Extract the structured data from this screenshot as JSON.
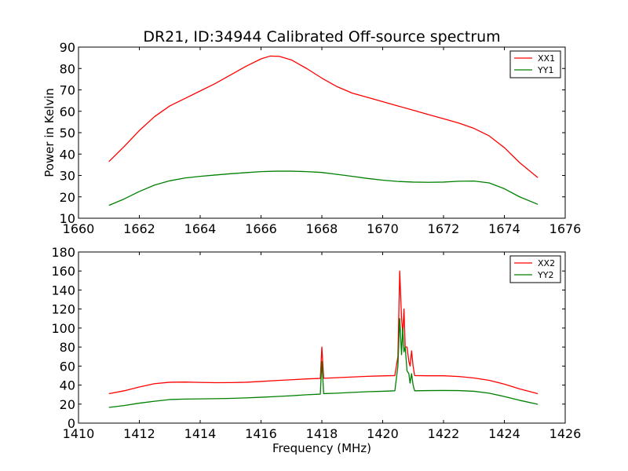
{
  "figure": {
    "title": "DR21, ID:34944 Calibrated Off-source spectrum"
  },
  "chart_data": [
    {
      "type": "line",
      "title": "DR21, ID:34944 Calibrated Off-source spectrum",
      "xlabel": "",
      "ylabel": "Power in Kelvin",
      "xlim": [
        1660,
        1676
      ],
      "ylim": [
        10,
        90
      ],
      "xticks": [
        1660,
        1662,
        1664,
        1666,
        1668,
        1670,
        1672,
        1674,
        1676
      ],
      "yticks": [
        10,
        20,
        30,
        40,
        50,
        60,
        70,
        80,
        90
      ],
      "grid": false,
      "legend_position": "top-right",
      "series": [
        {
          "name": "XX1",
          "color": "#ff0000",
          "points": [
            [
              1661.0,
              36.5
            ],
            [
              1661.5,
              43.5
            ],
            [
              1662.0,
              51.0
            ],
            [
              1662.5,
              57.5
            ],
            [
              1663.0,
              62.5
            ],
            [
              1663.5,
              66.0
            ],
            [
              1664.0,
              69.5
            ],
            [
              1664.5,
              73.0
            ],
            [
              1665.0,
              77.0
            ],
            [
              1665.5,
              81.0
            ],
            [
              1666.0,
              84.5
            ],
            [
              1666.3,
              85.8
            ],
            [
              1666.6,
              85.7
            ],
            [
              1667.0,
              84.0
            ],
            [
              1667.5,
              80.0
            ],
            [
              1668.0,
              75.5
            ],
            [
              1668.5,
              71.5
            ],
            [
              1669.0,
              68.5
            ],
            [
              1669.5,
              66.5
            ],
            [
              1670.0,
              64.5
            ],
            [
              1670.5,
              62.5
            ],
            [
              1671.0,
              60.5
            ],
            [
              1671.5,
              58.5
            ],
            [
              1672.0,
              56.5
            ],
            [
              1672.5,
              54.5
            ],
            [
              1673.0,
              52.0
            ],
            [
              1673.5,
              48.5
            ],
            [
              1674.0,
              43.0
            ],
            [
              1674.5,
              36.0
            ],
            [
              1675.1,
              29.0
            ]
          ]
        },
        {
          "name": "YY1",
          "color": "#008000",
          "points": [
            [
              1661.0,
              16.0
            ],
            [
              1661.5,
              19.0
            ],
            [
              1662.0,
              22.5
            ],
            [
              1662.5,
              25.5
            ],
            [
              1663.0,
              27.5
            ],
            [
              1663.5,
              28.8
            ],
            [
              1664.0,
              29.6
            ],
            [
              1664.5,
              30.2
            ],
            [
              1665.0,
              30.8
            ],
            [
              1665.5,
              31.3
            ],
            [
              1666.0,
              31.8
            ],
            [
              1666.5,
              32.0
            ],
            [
              1667.0,
              32.0
            ],
            [
              1667.5,
              31.8
            ],
            [
              1668.0,
              31.4
            ],
            [
              1668.5,
              30.5
            ],
            [
              1669.0,
              29.6
            ],
            [
              1669.5,
              28.6
            ],
            [
              1670.0,
              27.8
            ],
            [
              1670.5,
              27.2
            ],
            [
              1671.0,
              26.9
            ],
            [
              1671.5,
              26.8
            ],
            [
              1672.0,
              26.9
            ],
            [
              1672.5,
              27.3
            ],
            [
              1673.0,
              27.4
            ],
            [
              1673.5,
              26.5
            ],
            [
              1674.0,
              23.8
            ],
            [
              1674.5,
              20.0
            ],
            [
              1675.1,
              16.5
            ]
          ]
        }
      ]
    },
    {
      "type": "line",
      "title": "",
      "xlabel": "Frequency (MHz)",
      "ylabel": "",
      "xlim": [
        1410,
        1426
      ],
      "ylim": [
        0,
        180
      ],
      "xticks": [
        1410,
        1412,
        1414,
        1416,
        1418,
        1420,
        1422,
        1424,
        1426
      ],
      "yticks": [
        0,
        20,
        40,
        60,
        80,
        100,
        120,
        140,
        160,
        180
      ],
      "grid": false,
      "legend_position": "top-right",
      "series": [
        {
          "name": "XX2",
          "color": "#ff0000",
          "points": [
            [
              1411.0,
              31.0
            ],
            [
              1411.5,
              34.0
            ],
            [
              1412.0,
              38.0
            ],
            [
              1412.5,
              41.5
            ],
            [
              1413.0,
              43.0
            ],
            [
              1413.5,
              43.2
            ],
            [
              1414.0,
              42.8
            ],
            [
              1414.5,
              42.5
            ],
            [
              1415.0,
              42.6
            ],
            [
              1415.5,
              43.0
            ],
            [
              1416.0,
              43.8
            ],
            [
              1416.5,
              44.8
            ],
            [
              1417.0,
              45.6
            ],
            [
              1417.5,
              46.5
            ],
            [
              1417.95,
              47.0
            ],
            [
              1418.0,
              80.0
            ],
            [
              1418.06,
              47.2
            ],
            [
              1418.5,
              47.8
            ],
            [
              1419.0,
              48.5
            ],
            [
              1419.5,
              49.2
            ],
            [
              1420.0,
              49.7
            ],
            [
              1420.4,
              50.0
            ],
            [
              1420.5,
              70.0
            ],
            [
              1420.56,
              160.0
            ],
            [
              1420.62,
              110.0
            ],
            [
              1420.66,
              95.0
            ],
            [
              1420.7,
              120.0
            ],
            [
              1420.74,
              80.0
            ],
            [
              1420.8,
              80.0
            ],
            [
              1420.86,
              65.0
            ],
            [
              1420.9,
              60.0
            ],
            [
              1420.95,
              76.0
            ],
            [
              1421.0,
              60.0
            ],
            [
              1421.05,
              50.0
            ],
            [
              1421.5,
              49.8
            ],
            [
              1422.0,
              49.8
            ],
            [
              1422.5,
              49.0
            ],
            [
              1423.0,
              47.5
            ],
            [
              1423.5,
              45.0
            ],
            [
              1424.0,
              41.0
            ],
            [
              1424.5,
              36.0
            ],
            [
              1425.1,
              31.0
            ]
          ]
        },
        {
          "name": "YY2",
          "color": "#008000",
          "points": [
            [
              1411.0,
              16.5
            ],
            [
              1411.5,
              18.5
            ],
            [
              1412.0,
              21.0
            ],
            [
              1412.5,
              23.0
            ],
            [
              1413.0,
              24.8
            ],
            [
              1413.5,
              25.3
            ],
            [
              1414.0,
              25.5
            ],
            [
              1414.5,
              25.7
            ],
            [
              1415.0,
              26.0
            ],
            [
              1415.5,
              26.5
            ],
            [
              1416.0,
              27.2
            ],
            [
              1416.5,
              28.0
            ],
            [
              1417.0,
              28.8
            ],
            [
              1417.5,
              29.8
            ],
            [
              1417.95,
              30.5
            ],
            [
              1418.0,
              65.0
            ],
            [
              1418.06,
              31.0
            ],
            [
              1418.5,
              31.5
            ],
            [
              1419.0,
              32.3
            ],
            [
              1419.5,
              33.0
            ],
            [
              1420.0,
              33.5
            ],
            [
              1420.4,
              34.0
            ],
            [
              1420.5,
              60.0
            ],
            [
              1420.56,
              110.0
            ],
            [
              1420.62,
              72.0
            ],
            [
              1420.66,
              100.0
            ],
            [
              1420.7,
              75.0
            ],
            [
              1420.74,
              80.0
            ],
            [
              1420.8,
              55.0
            ],
            [
              1420.86,
              52.0
            ],
            [
              1420.9,
              42.0
            ],
            [
              1420.95,
              52.0
            ],
            [
              1421.0,
              40.0
            ],
            [
              1421.05,
              34.0
            ],
            [
              1421.5,
              34.2
            ],
            [
              1422.0,
              34.3
            ],
            [
              1422.5,
              34.2
            ],
            [
              1423.0,
              33.5
            ],
            [
              1423.5,
              31.5
            ],
            [
              1424.0,
              28.0
            ],
            [
              1424.5,
              24.0
            ],
            [
              1425.1,
              19.8
            ]
          ]
        }
      ]
    }
  ]
}
